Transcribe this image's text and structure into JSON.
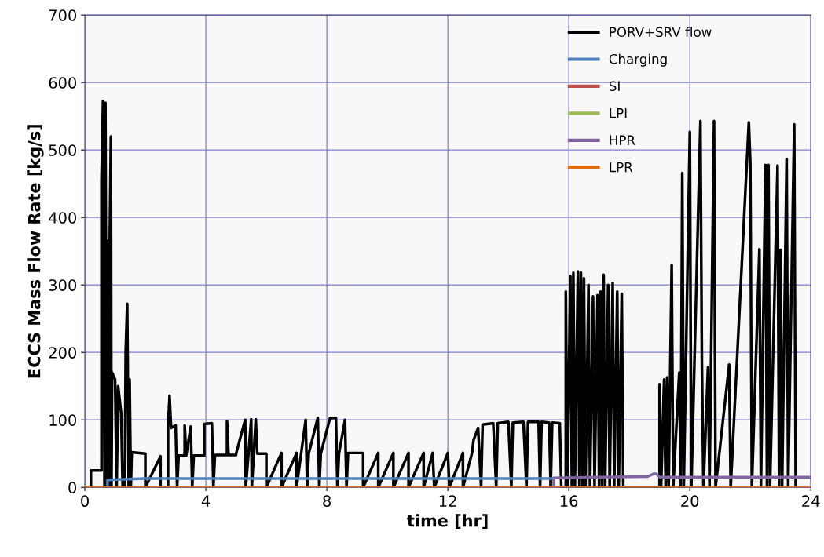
{
  "chart_data": {
    "type": "line",
    "xlabel": "time [hr]",
    "ylabel": "ECCS Mass Flow Rate [kg/s]",
    "xlim": [
      0,
      24
    ],
    "ylim": [
      0,
      700
    ],
    "xticks": [
      0,
      4,
      8,
      12,
      16,
      20,
      24
    ],
    "yticks": [
      0,
      100,
      200,
      300,
      400,
      500,
      600,
      700
    ],
    "grid": true,
    "legend": "top right",
    "line_style": "solid",
    "marker": "none",
    "series": [
      {
        "name": "PORV+SRV flow",
        "color": "#000000",
        "x": [
          0.2,
          0.2,
          0.55,
          0.55,
          0.6,
          0.65,
          0.68,
          0.72,
          0.76,
          0.8,
          0.82,
          0.86,
          0.88,
          0.9,
          1.0,
          1.05,
          1.1,
          1.2,
          1.25,
          1.32,
          1.35,
          1.4,
          1.45,
          1.48,
          1.52,
          1.55,
          2.0,
          2.0,
          2.5,
          2.5,
          2.75,
          2.75,
          2.8,
          2.85,
          3.0,
          3.05,
          3.1,
          3.3,
          3.3,
          3.35,
          3.5,
          3.55,
          3.6,
          3.95,
          3.95,
          4.2,
          4.25,
          4.3,
          4.7,
          4.7,
          4.75,
          5.0,
          5.0,
          5.3,
          5.32,
          5.5,
          5.52,
          5.65,
          5.7,
          6.0,
          6.0,
          6.5,
          6.5,
          7.0,
          7.0,
          7.3,
          7.35,
          7.4,
          7.7,
          7.75,
          7.8,
          8.1,
          8.2,
          8.3,
          8.35,
          8.4,
          8.6,
          8.65,
          8.7,
          9.2,
          9.2,
          9.7,
          9.7,
          10.2,
          10.2,
          10.7,
          10.7,
          11.2,
          11.2,
          11.5,
          11.55,
          12.0,
          12.05,
          12.5,
          12.5,
          12.8,
          12.85,
          13.0,
          13.1,
          13.15,
          13.5,
          13.6,
          13.65,
          14.0,
          14.1,
          14.15,
          14.5,
          14.6,
          14.65,
          15.0,
          15.05,
          15.1,
          15.35,
          15.4,
          15.45,
          15.7,
          15.75,
          15.9,
          15.9,
          15.95,
          16.05,
          16.1,
          16.15,
          16.2,
          16.3,
          16.35,
          16.4,
          16.45,
          16.5,
          16.55,
          16.65,
          16.7,
          16.8,
          16.85,
          16.95,
          17.0,
          17.05,
          17.1,
          17.15,
          17.2,
          17.3,
          17.35,
          17.45,
          17.5,
          17.6,
          17.65,
          17.75,
          17.8,
          19.0,
          19.0,
          19.05,
          19.15,
          19.2,
          19.25,
          19.3,
          19.4,
          19.45,
          19.65,
          19.7,
          19.75,
          19.8,
          20.0,
          20.05,
          20.35,
          20.4,
          20.45,
          20.6,
          20.65,
          20.8,
          20.85,
          21.3,
          21.35,
          21.95,
          22.0,
          22.05,
          22.3,
          22.35,
          22.5,
          22.55,
          22.6,
          22.65,
          22.9,
          22.95,
          23.0,
          23.05,
          23.2,
          23.25,
          23.45,
          23.5
        ],
        "values": [
          0,
          25,
          25,
          455,
          573,
          0,
          570,
          0,
          365,
          0,
          355,
          520,
          0,
          170,
          160,
          0,
          150,
          110,
          0,
          0,
          200,
          272,
          0,
          160,
          0,
          52,
          50,
          0,
          46,
          0,
          0,
          88,
          136,
          88,
          92,
          0,
          47,
          47,
          92,
          47,
          90,
          0,
          47,
          47,
          94,
          95,
          0,
          48,
          48,
          98,
          48,
          48,
          50,
          100,
          0,
          101,
          0,
          101,
          50,
          50,
          0,
          51,
          0,
          51,
          0,
          100,
          0,
          50,
          103,
          0,
          50,
          102,
          103,
          103,
          0,
          50,
          100,
          0,
          51,
          51,
          0,
          51,
          0,
          51,
          0,
          51,
          0,
          51,
          0,
          51,
          0,
          51,
          0,
          51,
          0,
          51,
          70,
          88,
          0,
          93,
          95,
          0,
          95,
          97,
          0,
          96,
          97,
          0,
          97,
          97,
          0,
          97,
          96,
          0,
          96,
          95,
          0,
          0,
          290,
          0,
          313,
          0,
          318,
          0,
          320,
          0,
          318,
          0,
          310,
          0,
          300,
          0,
          283,
          0,
          285,
          0,
          290,
          0,
          315,
          0,
          300,
          0,
          303,
          0,
          290,
          0,
          287,
          0,
          0,
          153,
          0,
          160,
          0,
          163,
          0,
          330,
          0,
          170,
          0,
          466,
          0,
          527,
          0,
          543,
          180,
          0,
          178,
          0,
          543,
          0,
          182,
          0,
          541,
          480,
          0,
          353,
          0,
          478,
          0,
          478,
          0,
          477,
          0,
          352,
          0,
          487,
          0,
          538,
          0
        ]
      },
      {
        "name": "Charging",
        "color": "#4f81bd",
        "x": [
          0.75,
          0.75,
          2,
          6,
          10,
          15.5
        ],
        "values": [
          0,
          11,
          13,
          13,
          13,
          13
        ]
      },
      {
        "name": "SI",
        "color": "#c0504d"
      },
      {
        "name": "LPI",
        "color": "#9bbb59"
      },
      {
        "name": "HPR",
        "color": "#8064a2",
        "x": [
          15.5,
          15.5,
          17,
          18.6,
          18.8,
          18.9,
          19.0,
          24
        ],
        "values": [
          0,
          14,
          15,
          16,
          20,
          20,
          15,
          15
        ]
      },
      {
        "name": "LPR",
        "color": "#e46c0a",
        "x": [
          0,
          24
        ],
        "values": [
          0,
          0
        ]
      }
    ]
  }
}
